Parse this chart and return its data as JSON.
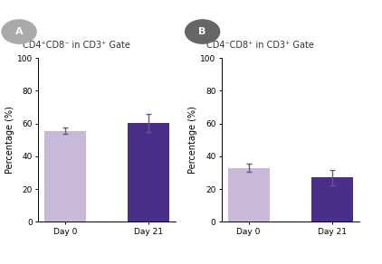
{
  "panel_A": {
    "label": "A",
    "title": "CD4⁺CD8⁻ in CD3⁺ Gate",
    "categories": [
      "Day 0",
      "Day 21"
    ],
    "values": [
      55.5,
      60.5
    ],
    "errors": [
      2.0,
      5.5
    ],
    "bar_colors": [
      "#c9b8d8",
      "#4b2d8a"
    ],
    "ylim": [
      0,
      100
    ],
    "yticks": [
      0,
      20,
      40,
      60,
      80,
      100
    ],
    "ylabel": "Percentage (%)"
  },
  "panel_B": {
    "label": "B",
    "title": "CD4⁻CD8⁺ in CD3⁺ Gate",
    "categories": [
      "Day 0",
      "Day 21"
    ],
    "values": [
      33.0,
      27.0
    ],
    "errors": [
      2.5,
      4.5
    ],
    "bar_colors": [
      "#c9b8d8",
      "#4b2d8a"
    ],
    "ylim": [
      0,
      100
    ],
    "yticks": [
      0,
      20,
      40,
      60,
      80,
      100
    ],
    "ylabel": "Percentage (%)"
  },
  "label_circle_color_A": "#aaaaaa",
  "label_circle_color_B": "#666666",
  "label_fontsize": 8,
  "title_fontsize": 7,
  "tick_fontsize": 6.5,
  "ylabel_fontsize": 7,
  "bar_width": 0.5,
  "error_capsize": 2.5,
  "error_color": "#6a5a8a",
  "error_linewidth": 1.0,
  "background_color": "#ffffff"
}
